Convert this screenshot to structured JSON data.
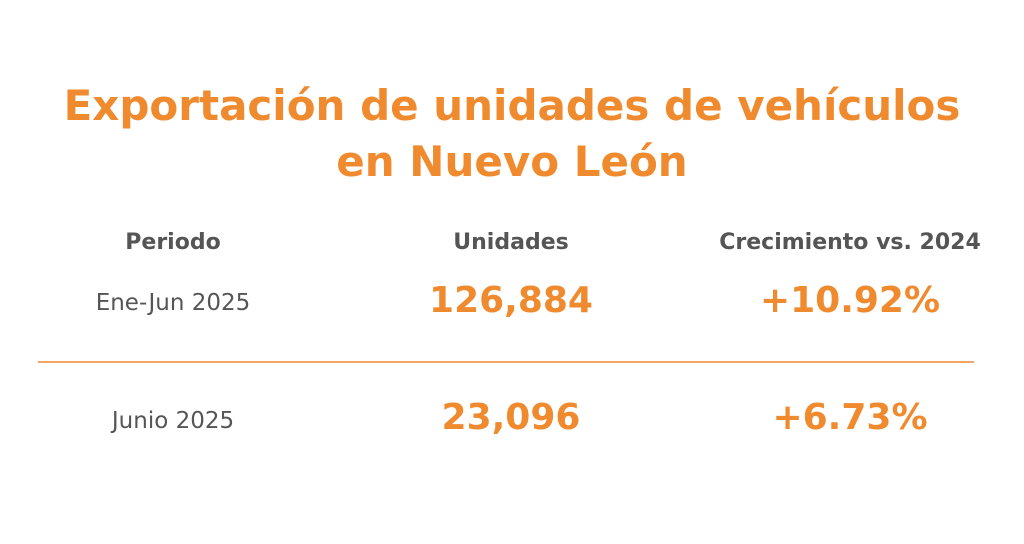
{
  "title": {
    "line1": "Exportación de unidades de vehículos",
    "line2": "en Nuevo León"
  },
  "table": {
    "headers": [
      "Periodo",
      "Unidades",
      "Crecimiento vs. 2024"
    ],
    "rows": [
      {
        "periodo": "Ene-Jun 2025",
        "unidades": "126,884",
        "crecimiento": "+10.92%"
      },
      {
        "periodo": "Junio 2025",
        "unidades": "23,096",
        "crecimiento": "+6.73%"
      }
    ]
  },
  "colors": {
    "accent": "#f08a2e",
    "text": "#555555",
    "divider": "#f3a565"
  }
}
